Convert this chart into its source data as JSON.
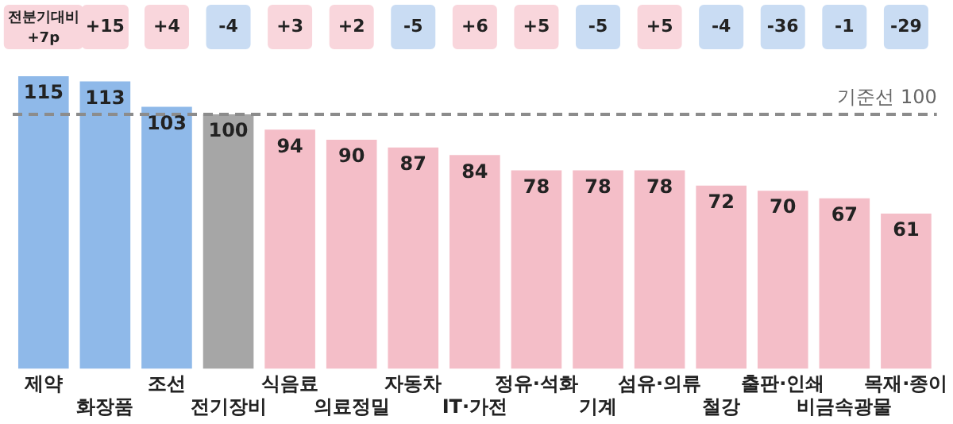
{
  "chart_data": {
    "type": "bar",
    "categories": [
      "제약",
      "화장품",
      "조선",
      "전기장비",
      "식음료",
      "의료정밀",
      "자동차",
      "IT·가전",
      "정유·석화",
      "기계",
      "섬유·의류",
      "철강",
      "출판·인쇄",
      "비금속광물",
      "목재·종이"
    ],
    "values": [
      115,
      113,
      103,
      100,
      94,
      90,
      87,
      84,
      78,
      78,
      78,
      72,
      70,
      67,
      61
    ],
    "colors": [
      "#8fb9e9",
      "#8fb9e9",
      "#8fb9e9",
      "#a6a6a6",
      "#f4bec8",
      "#f4bec8",
      "#f4bec8",
      "#f4bec8",
      "#f4bec8",
      "#f4bec8",
      "#f4bec8",
      "#f4bec8",
      "#f4bec8",
      "#f4bec8",
      "#f4bec8"
    ],
    "data_labels": true,
    "tick_labels": "x",
    "grid": false,
    "legend": false,
    "ref_lines": [
      {
        "axis": "y",
        "value": 100,
        "label": "기준선 100",
        "color": "#8c8c8c",
        "line_style": "dashed"
      }
    ],
    "annotations": [
      "전분기대비 +7p",
      "+15",
      "+4",
      "-4",
      "+3",
      "+2",
      "-5",
      "+6",
      "+5",
      "-5",
      "+5",
      "-4",
      "-36",
      "-1",
      "-29"
    ]
  }
}
